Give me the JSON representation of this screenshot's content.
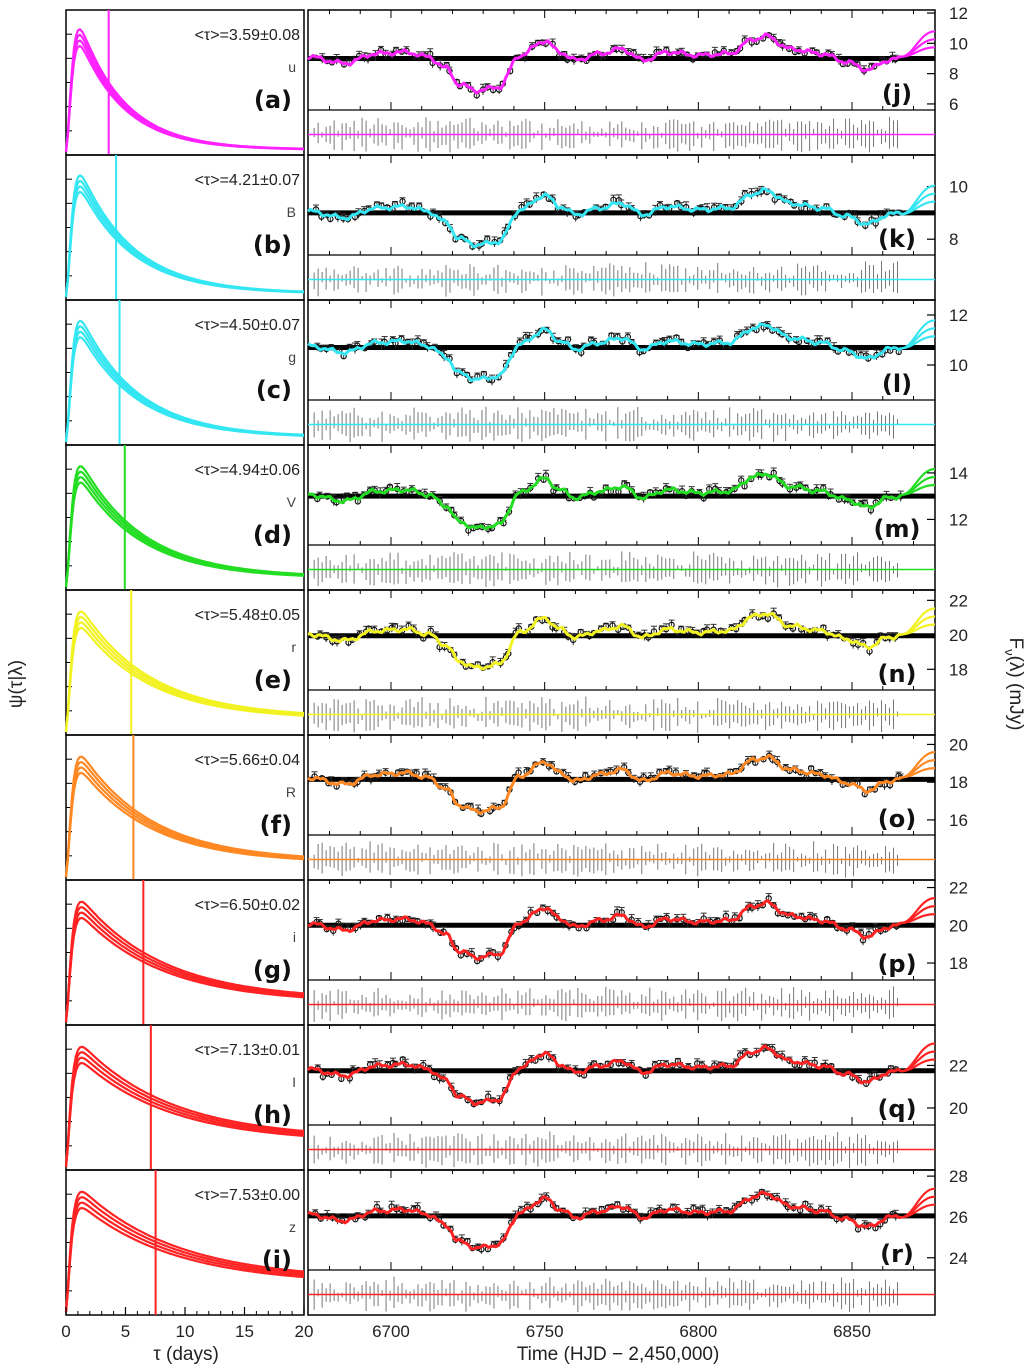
{
  "figure": {
    "left_xlabel": "τ  (days)",
    "right_xlabel": "Time  (HJD − 2,450,000)",
    "left_ylabel": "ψ(τ|λ)",
    "right_ylabel": "F",
    "right_ylabel_sub": "ν",
    "right_ylabel_tail": "(λ)  (mJy)"
  },
  "chart_data": [
    {
      "type": "line",
      "name": "delay distributions",
      "xlabel": "τ  (days)",
      "ylabel": "ψ(τ|λ)",
      "xlim": [
        0,
        20
      ],
      "xticks": [
        0,
        5,
        10,
        15,
        20
      ],
      "panels": [
        {
          "tag": "(a)",
          "band": "u",
          "mean_tau": 3.59,
          "tau_err": 0.08,
          "tau_text": "<τ>=3.59±0.08",
          "color": "#ff22ff",
          "tail": 0.02
        },
        {
          "tag": "(b)",
          "band": "B",
          "mean_tau": 4.21,
          "tau_err": 0.07,
          "tau_text": "<τ>=4.21±0.07",
          "color": "#33e6f2",
          "tail": 0.03
        },
        {
          "tag": "(c)",
          "band": "g",
          "mean_tau": 4.5,
          "tau_err": 0.07,
          "tau_text": "<τ>=4.50±0.07",
          "color": "#33e6f2",
          "tail": 0.04
        },
        {
          "tag": "(d)",
          "band": "V",
          "mean_tau": 4.94,
          "tau_err": 0.06,
          "tau_text": "<τ>=4.94±0.06",
          "color": "#22dd22",
          "tail": 0.08
        },
        {
          "tag": "(e)",
          "band": "r",
          "mean_tau": 5.48,
          "tau_err": 0.05,
          "tau_text": "<τ>=5.48±0.05",
          "color": "#f2f222",
          "tail": 0.12
        },
        {
          "tag": "(f)",
          "band": "R",
          "mean_tau": 5.66,
          "tau_err": 0.04,
          "tau_text": "<τ>=5.66±0.04",
          "color": "#ff8822",
          "tail": 0.13
        },
        {
          "tag": "(g)",
          "band": "i",
          "mean_tau": 6.5,
          "tau_err": 0.02,
          "tau_text": "<τ>=6.50±0.02",
          "color": "#ff2222",
          "tail": 0.18
        },
        {
          "tag": "(h)",
          "band": "I",
          "mean_tau": 7.13,
          "tau_err": 0.01,
          "tau_text": "<τ>=7.13±0.01",
          "color": "#ff2222",
          "tail": 0.23
        },
        {
          "tag": "(i)",
          "band": "z",
          "mean_tau": 7.53,
          "tau_err": 0.0,
          "tau_text": "<τ>=7.53±0.00",
          "color": "#ff2222",
          "tail": 0.26
        }
      ]
    },
    {
      "type": "scatter",
      "name": "light curves",
      "xlabel": "Time  (HJD − 2,450,000)",
      "ylabel": "Fν(λ)  (mJy)",
      "xlim": [
        6673,
        6877
      ],
      "xticks": [
        6700,
        6750,
        6800,
        6850
      ],
      "panels": [
        {
          "tag": "(j)",
          "color": "#ff22ff",
          "ylim": [
            5.6,
            12.2
          ],
          "yticks": [
            6,
            8,
            10,
            12
          ],
          "mean": 9.0
        },
        {
          "tag": "(k)",
          "color": "#33e6f2",
          "ylim": [
            7.4,
            11.2
          ],
          "yticks": [
            8,
            10
          ],
          "mean": 9.0
        },
        {
          "tag": "(l)",
          "color": "#33e6f2",
          "ylim": [
            8.6,
            12.6
          ],
          "yticks": [
            10,
            12
          ],
          "mean": 10.7
        },
        {
          "tag": "(m)",
          "color": "#22dd22",
          "ylim": [
            10.9,
            15.2
          ],
          "yticks": [
            12,
            14
          ],
          "mean": 13.0
        },
        {
          "tag": "(n)",
          "color": "#f2f222",
          "ylim": [
            16.8,
            22.6
          ],
          "yticks": [
            18,
            20,
            22
          ],
          "mean": 19.95
        },
        {
          "tag": "(o)",
          "color": "#ff8822",
          "ylim": [
            15.2,
            20.5
          ],
          "yticks": [
            16,
            18,
            20
          ],
          "mean": 18.15
        },
        {
          "tag": "(p)",
          "color": "#ff2222",
          "ylim": [
            17.1,
            22.4
          ],
          "yticks": [
            18,
            20,
            22
          ],
          "mean": 20.0
        },
        {
          "tag": "(q)",
          "color": "#ff2222",
          "ylim": [
            19.2,
            23.9
          ],
          "yticks": [
            20,
            22
          ],
          "mean": 21.75
        },
        {
          "tag": "(r)",
          "color": "#ff2222",
          "ylim": [
            23.4,
            28.3
          ],
          "yticks": [
            24,
            26,
            28
          ],
          "mean": 26.05
        }
      ],
      "light_curve_shape": [
        [
          6673,
          0.05
        ],
        [
          6685,
          -0.15
        ],
        [
          6695,
          0.15
        ],
        [
          6705,
          0.2
        ],
        [
          6712,
          0.05
        ],
        [
          6718,
          -0.3
        ],
        [
          6722,
          -0.8
        ],
        [
          6728,
          -1.0
        ],
        [
          6735,
          -0.9
        ],
        [
          6742,
          0.1
        ],
        [
          6750,
          0.55
        ],
        [
          6755,
          0.2
        ],
        [
          6760,
          -0.05
        ],
        [
          6768,
          0.15
        ],
        [
          6775,
          0.3
        ],
        [
          6782,
          -0.05
        ],
        [
          6790,
          0.2
        ],
        [
          6800,
          0.1
        ],
        [
          6810,
          0.15
        ],
        [
          6818,
          0.6
        ],
        [
          6822,
          0.7
        ],
        [
          6830,
          0.3
        ],
        [
          6840,
          0.15
        ],
        [
          6848,
          -0.1
        ],
        [
          6855,
          -0.35
        ],
        [
          6862,
          -0.05
        ],
        [
          6868,
          0.05
        ]
      ],
      "extension_values": [
        0.35,
        0.6,
        0.85
      ]
    }
  ]
}
